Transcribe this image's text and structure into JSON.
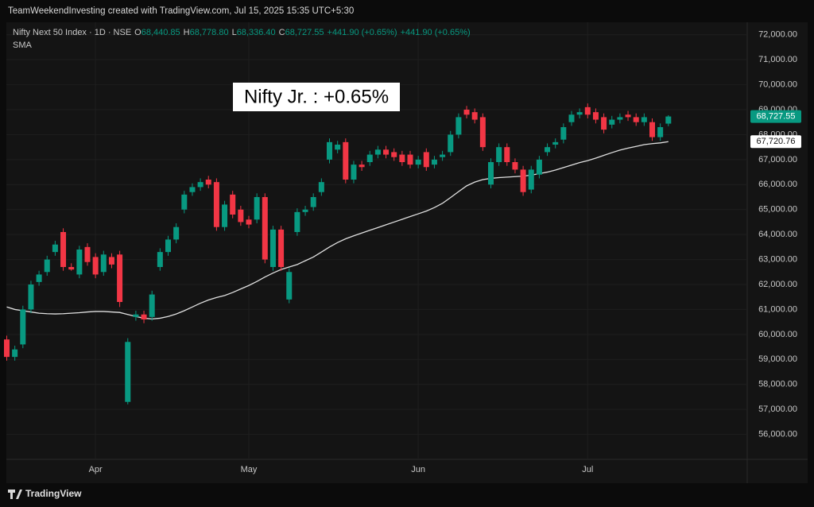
{
  "header": {
    "credit": "TeamWeekendInvesting created with TradingView.com, Jul 15, 2025 15:35 UTC+5:30"
  },
  "footer": {
    "logo": "TradingView"
  },
  "chart_data": {
    "type": "candlestick",
    "legend": {
      "symbol": "Nifty Next 50 Index · 1D · NSE",
      "items": [
        {
          "key": "O",
          "value": "68,440.85"
        },
        {
          "key": "H",
          "value": "68,778.80"
        },
        {
          "key": "L",
          "value": "68,336.40"
        },
        {
          "key": "C",
          "value": "68,727.55"
        }
      ],
      "change": "+441.90 (+0.65%)",
      "change_repeat": "+441.90 (+0.65%)",
      "indicator": "SMA"
    },
    "annotation": "Nifty Jr. : +0.65%",
    "categories": [
      null,
      null,
      null,
      null,
      null,
      null,
      null,
      null,
      null,
      null,
      null,
      "Apr",
      null,
      null,
      null,
      null,
      null,
      null,
      null,
      null,
      null,
      null,
      null,
      null,
      null,
      null,
      null,
      null,
      null,
      null,
      "May",
      null,
      null,
      null,
      null,
      null,
      null,
      null,
      null,
      null,
      null,
      null,
      null,
      null,
      null,
      null,
      null,
      null,
      null,
      null,
      null,
      "Jun",
      null,
      null,
      null,
      null,
      null,
      null,
      null,
      null,
      null,
      null,
      null,
      null,
      null,
      null,
      null,
      null,
      null,
      null,
      null,
      null,
      "Jul",
      null,
      null,
      null,
      null,
      null,
      null,
      null,
      null,
      null,
      null
    ],
    "up_color": "#089981",
    "down_color": "#f23645",
    "open": [
      59800,
      59100,
      59600,
      61000,
      62100,
      62500,
      63300,
      64100,
      62700,
      62400,
      63500,
      63100,
      62500,
      63100,
      63200,
      57300,
      60700,
      60800,
      60700,
      62700,
      63300,
      63800,
      65000,
      65700,
      65900,
      66200,
      66100,
      64300,
      65600,
      65000,
      64600,
      64600,
      65500,
      62700,
      64200,
      61400,
      64100,
      64900,
      65100,
      65700,
      67000,
      67400,
      67700,
      66200,
      66800,
      66900,
      67200,
      67400,
      67300,
      67200,
      67200,
      66800,
      67300,
      66800,
      67100,
      67300,
      68000,
      69000,
      68900,
      68700,
      66000,
      66900,
      67500,
      66900,
      66600,
      65800,
      66400,
      67300,
      67600,
      67800,
      68500,
      68800,
      69100,
      68900,
      68700,
      68400,
      68600,
      68800,
      68700,
      68500,
      68500,
      67900,
      68440.85
    ],
    "high": [
      59950,
      59550,
      61150,
      62150,
      62550,
      63150,
      63750,
      64250,
      62850,
      63550,
      63650,
      63250,
      63350,
      63250,
      63350,
      59850,
      60950,
      60950,
      61750,
      63450,
      63950,
      64450,
      65750,
      66050,
      66250,
      66350,
      66250,
      65350,
      65750,
      65150,
      64750,
      65650,
      65650,
      64350,
      64350,
      62650,
      65050,
      65150,
      65650,
      66250,
      67850,
      67750,
      67850,
      66950,
      66950,
      67350,
      67550,
      67550,
      67450,
      67350,
      67350,
      67150,
      67450,
      67150,
      67350,
      68150,
      68850,
      69150,
      69050,
      68850,
      67050,
      67650,
      67650,
      67050,
      66750,
      66750,
      67150,
      67650,
      67850,
      68450,
      68950,
      69050,
      69250,
      69050,
      68850,
      68750,
      68850,
      68950,
      68850,
      68850,
      68650,
      68450,
      68778.8
    ],
    "low": [
      58950,
      58950,
      59450,
      60850,
      61950,
      62350,
      63150,
      62550,
      62550,
      62250,
      62750,
      62250,
      62350,
      62650,
      61100,
      57200,
      60550,
      60450,
      60550,
      62550,
      63150,
      63650,
      64850,
      65550,
      65750,
      65850,
      64150,
      64150,
      64650,
      64350,
      64250,
      64450,
      62850,
      62550,
      62550,
      61250,
      63950,
      64750,
      64950,
      65550,
      66850,
      67250,
      66050,
      66050,
      66550,
      66750,
      67050,
      67050,
      66950,
      66750,
      66650,
      66650,
      66550,
      66650,
      66950,
      67150,
      67850,
      68650,
      68450,
      67350,
      65850,
      66750,
      66750,
      66450,
      65550,
      65650,
      66250,
      67150,
      67450,
      67650,
      68350,
      68650,
      68650,
      68450,
      68050,
      68250,
      68450,
      68550,
      68350,
      68350,
      67750,
      67750,
      68336.4
    ],
    "close": [
      59100,
      59400,
      61000,
      62000,
      62400,
      63000,
      63600,
      62700,
      62600,
      63400,
      62900,
      62400,
      63200,
      62800,
      61300,
      59700,
      60800,
      60600,
      61600,
      63300,
      63800,
      64300,
      65600,
      65900,
      66100,
      66000,
      64300,
      65200,
      64800,
      64500,
      64400,
      65500,
      63000,
      64200,
      62700,
      62500,
      64900,
      65000,
      65500,
      66100,
      67700,
      67600,
      66200,
      66800,
      66700,
      67200,
      67400,
      67200,
      67100,
      66900,
      66800,
      67000,
      66700,
      67000,
      67200,
      68000,
      68700,
      68800,
      68600,
      67500,
      66900,
      67500,
      66900,
      66600,
      65700,
      66600,
      67000,
      67500,
      67700,
      68300,
      68800,
      68900,
      68800,
      68600,
      68200,
      68600,
      68700,
      68700,
      68500,
      68700,
      67900,
      68300,
      68727.55
    ],
    "sma": {
      "color": "#e0e0e0",
      "values": [
        61100,
        61000,
        60950,
        60900,
        60850,
        60830,
        60820,
        60830,
        60850,
        60870,
        60900,
        60920,
        60920,
        60900,
        60880,
        60800,
        60720,
        60650,
        60620,
        60650,
        60720,
        60820,
        60950,
        61100,
        61250,
        61380,
        61480,
        61560,
        61680,
        61820,
        61960,
        62120,
        62300,
        62460,
        62600,
        62700,
        62800,
        62950,
        63100,
        63300,
        63500,
        63680,
        63830,
        63950,
        64060,
        64170,
        64280,
        64390,
        64500,
        64610,
        64720,
        64830,
        64940,
        65080,
        65250,
        65480,
        65720,
        65950,
        66100,
        66200,
        66250,
        66280,
        66300,
        66320,
        66340,
        66380,
        66440,
        66500,
        66580,
        66680,
        66780,
        66880,
        66960,
        67060,
        67170,
        67280,
        67380,
        67460,
        67530,
        67600,
        67640,
        67670,
        67720.76
      ]
    },
    "price_tags": [
      {
        "value": 68727.55,
        "label": "68,727.55",
        "color": "#089981",
        "text_color": "#ffffff"
      },
      {
        "value": 67720.76,
        "label": "67,720.76",
        "color": "#ffffff",
        "text_color": "#131313"
      }
    ],
    "ylim": [
      55000,
      72500
    ],
    "yticks": [
      {
        "value": 56000,
        "label": "56,000.00"
      },
      {
        "value": 57000,
        "label": "57,000.00"
      },
      {
        "value": 58000,
        "label": "58,000.00"
      },
      {
        "value": 59000,
        "label": "59,000.00"
      },
      {
        "value": 60000,
        "label": "60,000.00"
      },
      {
        "value": 61000,
        "label": "61,000.00"
      },
      {
        "value": 62000,
        "label": "62,000.00"
      },
      {
        "value": 63000,
        "label": "63,000.00"
      },
      {
        "value": 64000,
        "label": "64,000.00"
      },
      {
        "value": 65000,
        "label": "65,000.00"
      },
      {
        "value": 66000,
        "label": "66,000.00"
      },
      {
        "value": 67000,
        "label": "67,000.00"
      },
      {
        "value": 68000,
        "label": "68,000.00"
      },
      {
        "value": 69000,
        "label": "69,000.00"
      },
      {
        "value": 70000,
        "label": "70,000.00"
      },
      {
        "value": 71000,
        "label": "71,000.00"
      },
      {
        "value": 72000,
        "label": "72,000.00"
      }
    ],
    "grid": true
  }
}
